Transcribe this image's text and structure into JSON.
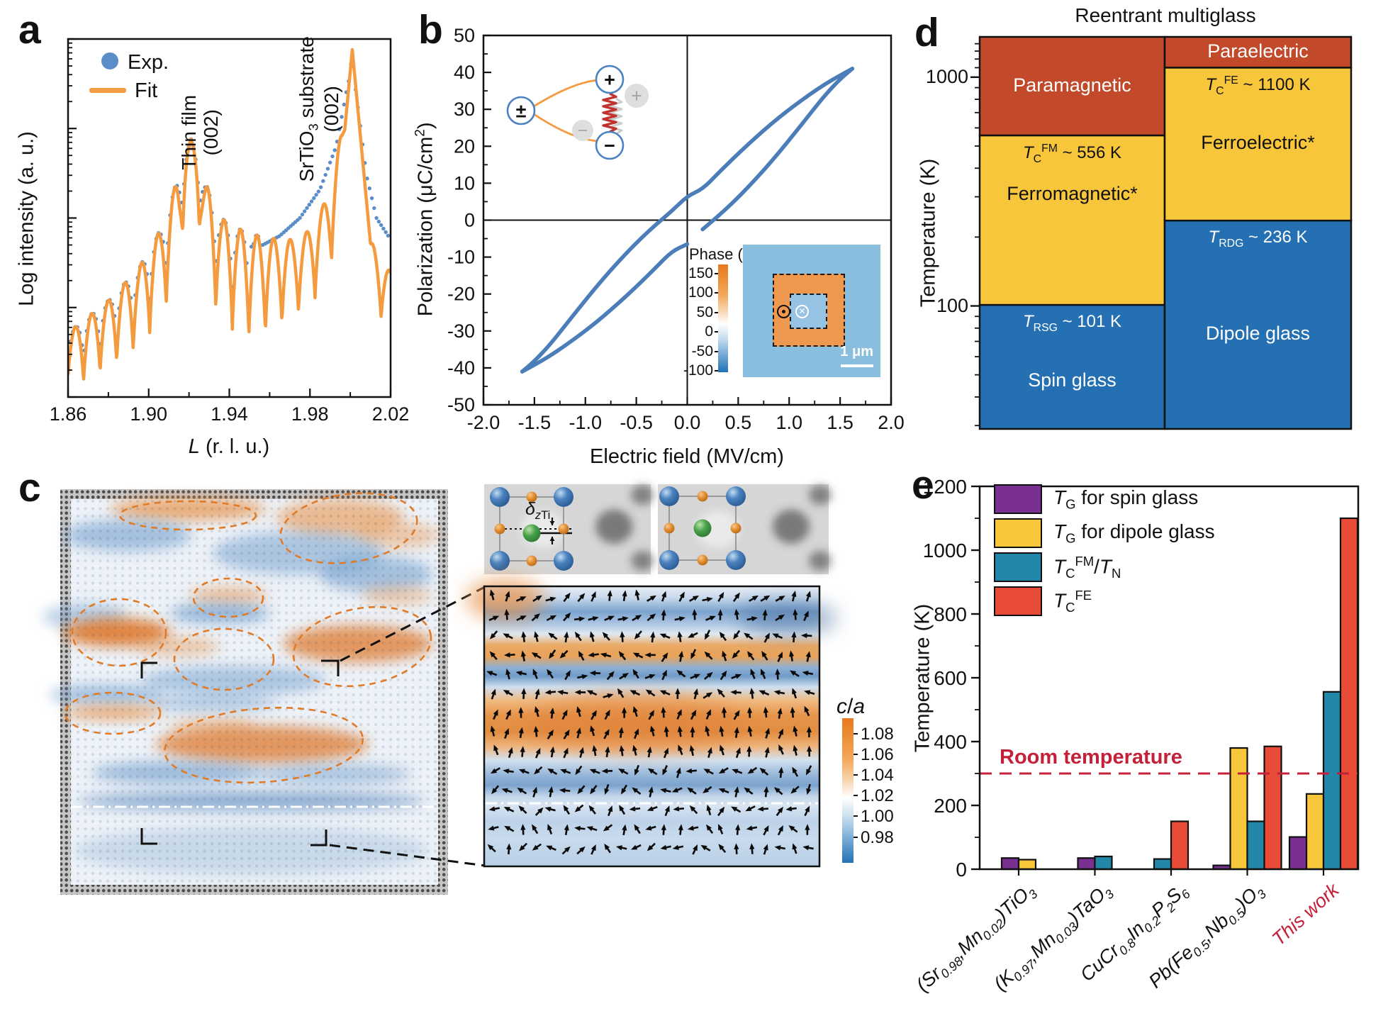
{
  "panel_a": {
    "label": "a",
    "legend": {
      "exp_label": "Exp.",
      "fit_label": "Fit"
    },
    "ylabel": "Log intensity (a. u.)",
    "xlabel_html": "<i>L</i> (r. l. u.)",
    "annotation_film_html": "Thin film<br>(002)",
    "annotation_substrate_html": "SrTiO<sub>3</sub> substrate<br>(002)"
  },
  "panel_b": {
    "label": "b",
    "ylabel_html": "Polarization (μC/cm<sup>2</sup>)",
    "xlabel": "Electric field (MV/cm)",
    "schematic": {
      "left_symbol": "±",
      "top_symbol": "+",
      "bottom_symbol": "−",
      "ghost_plus": "+",
      "ghost_minus": "−"
    },
    "pfm": {
      "colorbar_title": "Phase (°)",
      "colorbar_tick_labels": [
        "150",
        "100",
        "50",
        "0",
        "-50",
        "-100"
      ],
      "scalebar_label": "1 μm"
    }
  },
  "panel_c": {
    "label": "c",
    "delta_label_html": "<i>δ</i><sub><i>z</i>Ti</sub>"
  },
  "panel_d": {
    "label": "d",
    "title": "Reentrant multiglass",
    "ylabel": "Temperature (K)"
  },
  "panel_e": {
    "label": "e",
    "ylabel": "Temperature (K)"
  },
  "chart_data": {
    "panel_a": {
      "type": "line",
      "title": "",
      "xlabel": "L (r. l. u.)",
      "ylabel": "Log intensity (a. u.)",
      "yscale": "log-arbitrary",
      "xlim": [
        1.86,
        2.02
      ],
      "xtick_labels": [
        "1.86",
        "1.90",
        "1.94",
        "1.98",
        "2.02"
      ],
      "xtick_values": [
        1.86,
        1.9,
        1.94,
        1.98,
        2.02
      ],
      "series": [
        {
          "name": "Exp.",
          "style": "scatter",
          "color": "#5b8ec9"
        },
        {
          "name": "Fit",
          "style": "line",
          "color": "#f59b3f"
        }
      ],
      "film_peak_L": 1.921,
      "film_peak_label": "Thin film (002)",
      "substrate_peak_L": 2.001,
      "substrate_peak_label": "SrTiO3 substrate (002)",
      "fringe_period_L": 0.0082,
      "fit_envelope_max": [
        [
          1.86,
          0.18
        ],
        [
          1.88,
          0.27
        ],
        [
          1.895,
          0.36
        ],
        [
          1.906,
          0.47
        ],
        [
          1.915,
          0.62
        ],
        [
          1.921,
          0.72
        ],
        [
          1.928,
          0.6
        ],
        [
          1.936,
          0.5
        ],
        [
          1.945,
          0.47
        ],
        [
          1.955,
          0.45
        ],
        [
          1.965,
          0.44
        ],
        [
          1.975,
          0.44
        ],
        [
          1.983,
          0.49
        ],
        [
          1.99,
          0.58
        ],
        [
          1.996,
          0.75
        ],
        [
          2.001,
          0.97
        ],
        [
          2.005,
          0.62
        ],
        [
          2.01,
          0.44
        ],
        [
          2.015,
          0.38
        ],
        [
          2.02,
          0.35
        ]
      ],
      "fit_envelope_min": [
        [
          1.86,
          0.02
        ],
        [
          1.88,
          0.08
        ],
        [
          1.895,
          0.14
        ],
        [
          1.906,
          0.22
        ],
        [
          1.915,
          0.34
        ],
        [
          1.921,
          0.72
        ],
        [
          1.928,
          0.3
        ],
        [
          1.936,
          0.22
        ],
        [
          1.945,
          0.17
        ],
        [
          1.955,
          0.17
        ],
        [
          1.965,
          0.2
        ],
        [
          1.975,
          0.24
        ],
        [
          1.983,
          0.28
        ],
        [
          1.99,
          0.36
        ],
        [
          1.996,
          0.52
        ],
        [
          2.001,
          0.97
        ],
        [
          2.005,
          0.34
        ],
        [
          2.01,
          0.26
        ],
        [
          2.015,
          0.22
        ],
        [
          2.02,
          0.19
        ]
      ],
      "exp_shoulder": [
        [
          1.955,
          0.42
        ],
        [
          1.965,
          0.45
        ],
        [
          1.975,
          0.5
        ],
        [
          1.985,
          0.58
        ],
        [
          1.993,
          0.7
        ],
        [
          1.998,
          0.85
        ],
        [
          2.001,
          0.93
        ],
        [
          2.004,
          0.8
        ],
        [
          2.008,
          0.62
        ],
        [
          2.013,
          0.5
        ],
        [
          2.02,
          0.44
        ]
      ]
    },
    "panel_b": {
      "type": "line",
      "xlabel": "Electric field (MV/cm)",
      "ylabel": "Polarization (uC/cm2)",
      "xlim": [
        -2.0,
        2.0
      ],
      "ylim": [
        -50,
        50
      ],
      "xtick_labels": [
        "-2.0",
        "-1.5",
        "-1.0",
        "-0.5",
        "0.0",
        "0.5",
        "1.0",
        "1.5",
        "2.0"
      ],
      "xtick_values": [
        -2.0,
        -1.5,
        -1.0,
        -0.5,
        0.0,
        0.5,
        1.0,
        1.5,
        2.0
      ],
      "ytick_labels": [
        "50",
        "40",
        "30",
        "20",
        "10",
        "0",
        "-10",
        "-20",
        "-30",
        "-40",
        "-50"
      ],
      "ytick_values": [
        50,
        40,
        30,
        20,
        10,
        0,
        -10,
        -20,
        -30,
        -40,
        -50
      ],
      "loop_color": "#4b7db8",
      "loop_upper": [
        [
          1.62,
          41
        ],
        [
          1.5,
          39.2
        ],
        [
          1.35,
          36.8
        ],
        [
          1.2,
          34
        ],
        [
          1.05,
          31
        ],
        [
          0.9,
          27.8
        ],
        [
          0.75,
          24.3
        ],
        [
          0.6,
          20.6
        ],
        [
          0.45,
          16.7
        ],
        [
          0.3,
          12.6
        ],
        [
          0.15,
          8.4
        ],
        [
          0,
          6.5
        ],
        [
          -0.15,
          2.5
        ],
        [
          -0.3,
          -1
        ],
        [
          -0.45,
          -4.8
        ],
        [
          -0.6,
          -9
        ],
        [
          -0.75,
          -13.5
        ],
        [
          -0.9,
          -18.3
        ],
        [
          -1.05,
          -23.4
        ],
        [
          -1.2,
          -28.6
        ],
        [
          -1.35,
          -33.8
        ],
        [
          -1.5,
          -38.2
        ],
        [
          -1.62,
          -41
        ]
      ],
      "loop_lower_a": [
        [
          -1.62,
          -41
        ],
        [
          -1.5,
          -39.2
        ],
        [
          -1.35,
          -36.8
        ],
        [
          -1.2,
          -34
        ],
        [
          -1.05,
          -31
        ],
        [
          -0.9,
          -27.8
        ],
        [
          -0.75,
          -24.3
        ],
        [
          -0.6,
          -20.6
        ],
        [
          -0.45,
          -16.7
        ],
        [
          -0.3,
          -12.6
        ],
        [
          -0.15,
          -8.4
        ],
        [
          0,
          -6.5
        ]
      ],
      "loop_lower_b": [
        [
          0.15,
          -2.5
        ],
        [
          0.3,
          1
        ],
        [
          0.45,
          4.8
        ],
        [
          0.6,
          9
        ],
        [
          0.75,
          13.5
        ],
        [
          0.9,
          18.3
        ],
        [
          1.05,
          23.4
        ],
        [
          1.2,
          28.6
        ],
        [
          1.35,
          33.8
        ],
        [
          1.5,
          38.2
        ],
        [
          1.62,
          41
        ]
      ],
      "pfm_inset": {
        "colorbar_title": "Phase (°)",
        "colorbar_ticks": [
          150,
          100,
          50,
          0,
          -50,
          -100
        ],
        "scalebar": "1 μm"
      }
    },
    "panel_c": {
      "type": "strain-map",
      "colorbar_title_html": "<i>c</i>/<i>a</i>",
      "colorbar_tick_labels": [
        "1.08",
        "1.06",
        "1.04",
        "1.02",
        "1.00",
        "0.98"
      ],
      "colorbar_tick_values": [
        1.08,
        1.06,
        1.04,
        1.02,
        1.0,
        0.98
      ],
      "colorbar_range": [
        0.955,
        1.095
      ]
    },
    "panel_d": {
      "type": "phase-diagram",
      "title": "Reentrant multiglass",
      "ylabel": "Temperature (K)",
      "yscale": "log",
      "ylim": [
        29,
        1500
      ],
      "ytick_labels": [
        "1000",
        "100"
      ],
      "ytick_values": [
        1000,
        100
      ],
      "columns": [
        {
          "regions": [
            {
              "name": "Paramagnetic",
              "t_top": 1500,
              "t_bottom": 556,
              "color": "#c2492a",
              "text_color": "#ffffff"
            },
            {
              "name": "Ferromagnetic*",
              "t_top": 556,
              "t_bottom": 101,
              "color": "#f8c63b",
              "text_color": "#111111",
              "boundary_label_html": "<i>T</i><sub>C</sub><sup>FM</sup> ~ 556 K",
              "boundary_label_color": "#111111"
            },
            {
              "name": "Spin glass",
              "t_top": 101,
              "t_bottom": 29,
              "color": "#2470b3",
              "text_color": "#ffffff",
              "boundary_label_html": "<i>T</i><sub>RSG</sub> ~ 101 K",
              "boundary_label_color": "#ffffff"
            }
          ]
        },
        {
          "regions": [
            {
              "name": "Paraelectric",
              "t_top": 1500,
              "t_bottom": 1100,
              "color": "#c2492a",
              "text_color": "#ffffff"
            },
            {
              "name": "Ferroelectric*",
              "t_top": 1100,
              "t_bottom": 236,
              "color": "#f8c63b",
              "text_color": "#111111",
              "boundary_label_html": "<i>T</i><sub>C</sub><sup>FE</sup> ~ 1100 K",
              "boundary_label_color": "#111111"
            },
            {
              "name": "Dipole glass",
              "t_top": 236,
              "t_bottom": 29,
              "color": "#2470b3",
              "text_color": "#ffffff",
              "boundary_label_html": "<i>T</i><sub>RDG</sub> ~ 236 K",
              "boundary_label_color": "#ffffff"
            }
          ]
        }
      ]
    },
    "panel_e": {
      "type": "bar",
      "ylabel": "Temperature (K)",
      "ylim": [
        0,
        1200
      ],
      "ytick_values": [
        0,
        200,
        400,
        600,
        800,
        1000,
        1200
      ],
      "categories_html": [
        "(Sr<sub>0.98</sub>,Mn<sub>0.02</sub>)TiO<sub>3</sub>",
        "(K<sub>0.97</sub>,Mn<sub>0.03</sub>)TaO<sub>3</sub>",
        "CuCr<sub>0.8</sub>In<sub>0.2</sub>P<sub>2</sub>S<sub>6</sub>",
        "Pb(Fe<sub>0.5</sub>,Nb<sub>0.5</sub>)O<sub>3</sub>",
        "This work"
      ],
      "categories_plain": [
        "(Sr0.98,Mn0.02)TiO3",
        "(K0.97,Mn0.03)TaO3",
        "CuCr0.8In0.2P2S6",
        "Pb(Fe0.5,Nb0.5)O3",
        "This work"
      ],
      "series": [
        {
          "name_html": "<i>T</i><sub>G</sub> for spin glass",
          "color": "#7a3090",
          "values": [
            35,
            35,
            null,
            12,
            101
          ]
        },
        {
          "name_html": "<i>T</i><sub>G</sub> for dipole glass",
          "color": "#f8c63b",
          "values": [
            30,
            null,
            null,
            380,
            236
          ]
        },
        {
          "name_html": "<i>T</i><sub>C</sub><sup>FM</sup>/<i>T</i><sub>N</sub>",
          "color": "#2287a8",
          "values": [
            null,
            40,
            32,
            150,
            556
          ]
        },
        {
          "name_html": "<i>T</i><sub>C</sub><sup>FE</sup>",
          "color": "#e84c38",
          "values": [
            null,
            null,
            150,
            385,
            1100
          ]
        }
      ],
      "reference_line": {
        "label": "Room temperature",
        "value": 300,
        "color": "#c5203a"
      },
      "last_category_color": "#c5203a",
      "legend_position": "top-left",
      "grid": false
    }
  }
}
